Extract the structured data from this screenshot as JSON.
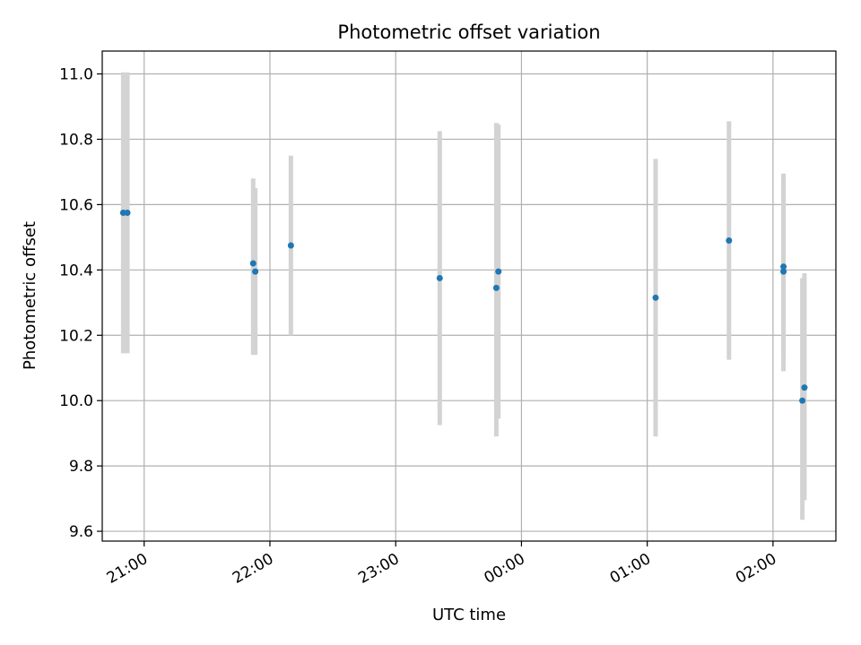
{
  "chart_data": {
    "type": "scatter",
    "title": "Photometric offset variation",
    "xlabel": "UTC time",
    "ylabel": "Photometric offset",
    "x_axis_type": "time",
    "xlim": [
      "20:40",
      "02:30"
    ],
    "ylim": [
      9.57,
      11.07
    ],
    "grid": true,
    "x_ticks": [
      "21:00",
      "22:00",
      "23:00",
      "00:00",
      "01:00",
      "02:00"
    ],
    "y_ticks": [
      "9.6",
      "9.8",
      "10.0",
      "10.2",
      "10.4",
      "10.6",
      "10.8",
      "11.0"
    ],
    "colors": {
      "point": "#1f77b4",
      "errorbar": "#d3d3d3",
      "grid": "#b0b0b0",
      "axes": "#000000"
    },
    "points": [
      {
        "time": "20:50",
        "y": 10.575,
        "low": 10.145,
        "high": 11.005
      },
      {
        "time": "20:52",
        "y": 10.575,
        "low": 10.145,
        "high": 11.005
      },
      {
        "time": "21:52",
        "y": 10.42,
        "low": 10.14,
        "high": 10.68
      },
      {
        "time": "21:53",
        "y": 10.395,
        "low": 10.14,
        "high": 10.65
      },
      {
        "time": "22:10",
        "y": 10.475,
        "low": 10.2,
        "high": 10.75
      },
      {
        "time": "23:21",
        "y": 10.375,
        "low": 9.925,
        "high": 10.825
      },
      {
        "time": "23:48",
        "y": 10.345,
        "low": 9.89,
        "high": 10.85
      },
      {
        "time": "23:49",
        "y": 10.395,
        "low": 9.945,
        "high": 10.845
      },
      {
        "time": "01:04",
        "y": 10.315,
        "low": 9.89,
        "high": 10.74
      },
      {
        "time": "01:39",
        "y": 10.49,
        "low": 10.125,
        "high": 10.855
      },
      {
        "time": "02:05",
        "y": 10.41,
        "low": 10.09,
        "high": 10.695
      },
      {
        "time": "02:05",
        "y": 10.395,
        "low": 10.145,
        "high": 10.68
      },
      {
        "time": "02:14",
        "y": 10.0,
        "low": 9.635,
        "high": 10.375
      },
      {
        "time": "02:15",
        "y": 10.04,
        "low": 9.695,
        "high": 10.39
      }
    ]
  }
}
